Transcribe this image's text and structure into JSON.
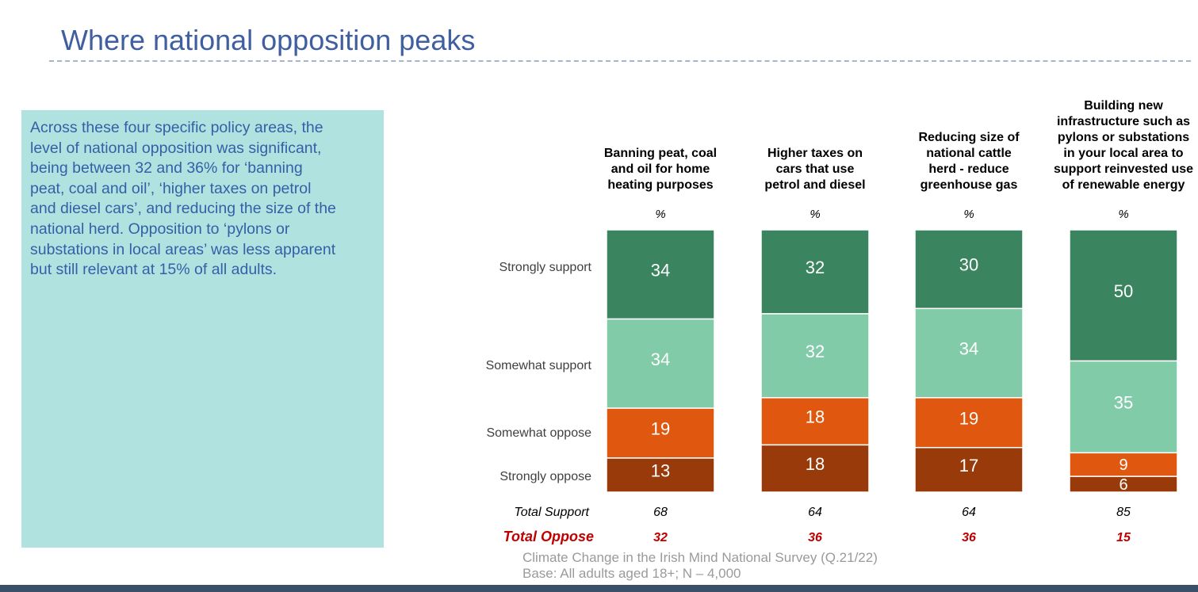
{
  "page": {
    "title": "Where national opposition peaks"
  },
  "callout": {
    "text": "Across these four specific policy areas, the level of national opposition was significant, being between 32 and 36% for ‘banning peat, coal and oil’, ‘higher taxes on petrol and diesel cars’, and reducing the size of the national herd. Opposition to ‘pylons or substations in local areas’ was less apparent but still relevant at 15% of all adults."
  },
  "source": {
    "line1": "Climate Change in the Irish Mind National Survey (Q.21/22)",
    "line2": "Base: All adults aged 18+; N – 4,000"
  },
  "colors": {
    "strongly_support": "#3a8460",
    "somewhat_support": "#82cba8",
    "somewhat_oppose": "#e0580f",
    "strongly_oppose": "#983a0a",
    "total_oppose": "#c00000"
  },
  "chart_data": {
    "type": "bar",
    "stacked": true,
    "unit_label": "%",
    "categories": [
      [
        "Banning peat, coal",
        "and oil for home",
        "heating purposes"
      ],
      [
        "Higher taxes on",
        "cars that use",
        "petrol and diesel"
      ],
      [
        "Reducing size of",
        "national cattle",
        "herd - reduce",
        "greenhouse gas"
      ],
      [
        "Building new",
        "infrastructure such as",
        "pylons or substations",
        "in your local area to",
        "support reinvested use",
        "of renewable energy"
      ]
    ],
    "series": [
      {
        "name": "Strongly support",
        "key": "strongly_support",
        "values": [
          34,
          32,
          30,
          50
        ]
      },
      {
        "name": "Somewhat support",
        "key": "somewhat_support",
        "values": [
          34,
          32,
          34,
          35
        ]
      },
      {
        "name": "Somewhat oppose",
        "key": "somewhat_oppose",
        "values": [
          19,
          18,
          19,
          9
        ]
      },
      {
        "name": "Strongly oppose",
        "key": "strongly_oppose",
        "values": [
          13,
          18,
          17,
          6
        ]
      }
    ],
    "totals": [
      {
        "label": "Total Support",
        "values": [
          68,
          64,
          64,
          85
        ]
      },
      {
        "label": "Total Oppose",
        "values": [
          32,
          36,
          36,
          15
        ]
      }
    ]
  }
}
